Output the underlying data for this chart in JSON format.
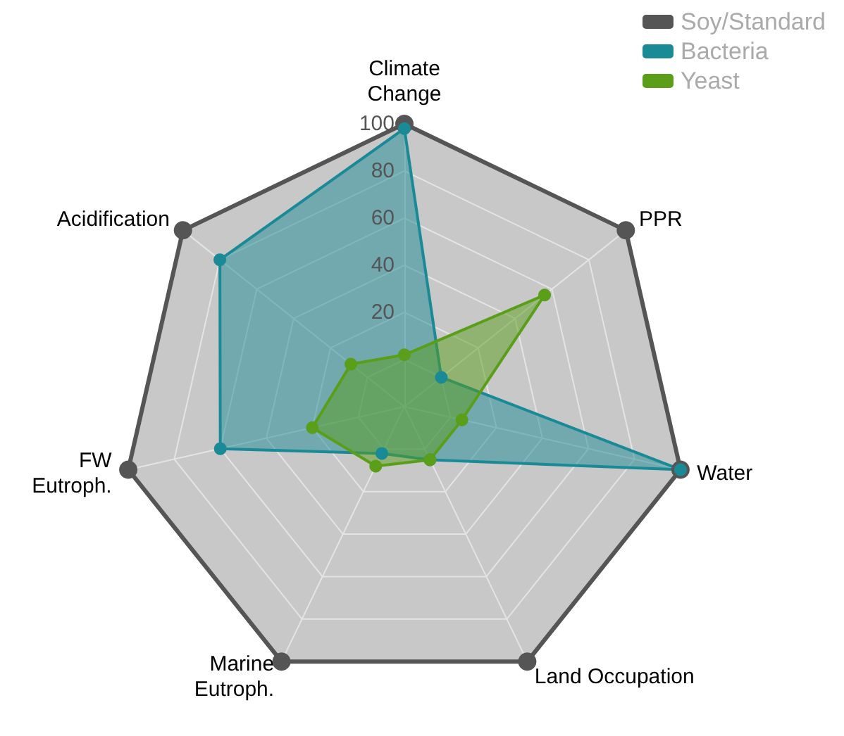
{
  "chart_data": {
    "type": "radar",
    "categories": [
      "Climate\nChange",
      "PPR",
      "Water",
      "Land Occupation",
      "Marine\nEutroph.",
      "FW\nEutroph.",
      "Acidification"
    ],
    "series": [
      {
        "name": "Soy/Standard",
        "color": "#555555",
        "values": [
          100,
          100,
          100,
          100,
          100,
          100,
          100
        ]
      },
      {
        "name": "Bacteria",
        "color": "#1a8a96",
        "values": [
          98,
          0,
          100,
          5,
          2,
          60,
          80
        ]
      },
      {
        "name": "Yeast",
        "color": "#5a9e1a",
        "values": [
          2,
          56,
          5,
          5,
          8,
          20,
          9
        ]
      }
    ],
    "ylim": [
      -20,
      100
    ],
    "yticks": [
      20,
      40,
      60,
      80,
      100
    ],
    "legend": "top right",
    "marker": "circle",
    "line_style": "solid",
    "grid": true
  }
}
